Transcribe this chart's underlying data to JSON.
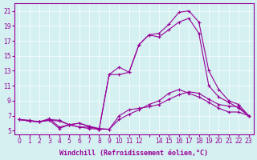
{
  "background_color": "#d4f0f0",
  "line_color": "#990099",
  "ylim": [
    4.5,
    22
  ],
  "xlim": [
    -0.5,
    23.5
  ],
  "yticks": [
    5,
    7,
    9,
    11,
    13,
    15,
    17,
    19,
    21
  ],
  "xticks": [
    0,
    1,
    2,
    3,
    4,
    5,
    6,
    7,
    8,
    9,
    10,
    11,
    12,
    13,
    14,
    15,
    16,
    17,
    18,
    19,
    20,
    21,
    22,
    23
  ],
  "xtick_labels": [
    "0",
    "1",
    "2",
    "3",
    "4",
    "5",
    "6",
    "7",
    "8",
    "9",
    "10",
    "11",
    "12",
    "",
    "14",
    "15",
    "16",
    "17",
    "18",
    "19",
    "20",
    "21",
    "22",
    "23"
  ],
  "xlabel": "Windchill (Refroidissement éolien,°C)",
  "series": [
    [
      6.5,
      6.3,
      6.2,
      6.5,
      6.4,
      5.8,
      6.0,
      5.6,
      5.3,
      5.2,
      7.0,
      7.8,
      8.0,
      8.2,
      8.5,
      9.2,
      9.8,
      10.2,
      10.0,
      9.2,
      8.5,
      8.3,
      8.2,
      7.0
    ],
    [
      6.5,
      6.3,
      6.2,
      6.4,
      6.3,
      5.8,
      6.0,
      5.6,
      5.2,
      5.2,
      6.5,
      7.2,
      7.8,
      8.5,
      9.0,
      10.0,
      10.5,
      10.0,
      9.5,
      8.8,
      8.0,
      7.5,
      7.5,
      7.0
    ],
    [
      6.5,
      6.3,
      6.2,
      6.4,
      5.3,
      5.8,
      5.5,
      5.3,
      5.2,
      12.5,
      12.5,
      12.8,
      16.5,
      17.8,
      18.0,
      19.2,
      20.8,
      21.0,
      19.5,
      13.0,
      10.5,
      9.0,
      8.5,
      7.0
    ],
    [
      6.5,
      6.4,
      6.2,
      6.6,
      5.5,
      5.8,
      5.5,
      5.5,
      5.2,
      12.5,
      13.5,
      12.8,
      16.5,
      17.8,
      17.5,
      18.5,
      19.5,
      20.0,
      18.0,
      11.0,
      9.5,
      8.8,
      8.0,
      7.0
    ]
  ]
}
